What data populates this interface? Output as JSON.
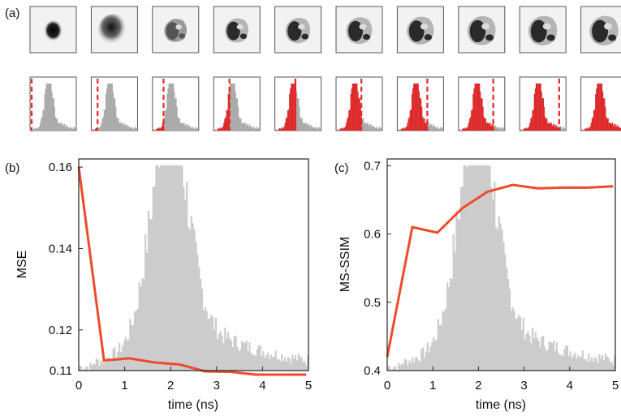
{
  "panels": {
    "a": "(a)",
    "b": "(b)",
    "c": "(c)"
  },
  "colors": {
    "histogram": "#cccccc",
    "curve": "#ee4b2b",
    "marker": "#ee2222",
    "fill": "#dd2b2b"
  },
  "strip": {
    "frames": 10,
    "marker_times_ns": [
      0.0,
      0.55,
      1.1,
      1.65,
      2.2,
      2.75,
      3.3,
      3.85,
      4.4,
      4.95
    ]
  },
  "chart_data": [
    {
      "type": "line",
      "panel": "(b)",
      "xlabel": "time (ns)",
      "ylabel": "MSE",
      "xlim": [
        0,
        5
      ],
      "ylim": [
        0.11,
        0.162
      ],
      "xticks": [
        "0",
        "1",
        "2",
        "3",
        "4",
        "5"
      ],
      "yticks": [
        "0.11",
        "0.12",
        "0.14",
        "0.16"
      ],
      "ytick_values": [
        0.11,
        0.12,
        0.14,
        0.16
      ],
      "series": [
        {
          "x": [
            0,
            0.55,
            1.1,
            1.65,
            2.2,
            2.75,
            3.3,
            3.85,
            4.4,
            4.95
          ],
          "y": [
            0.16,
            0.1125,
            0.113,
            0.112,
            0.1115,
            0.1098,
            0.1097,
            0.109,
            0.109,
            0.109
          ]
        }
      ]
    },
    {
      "type": "line",
      "panel": "(c)",
      "xlabel": "time (ns)",
      "ylabel": "MS-SSIM",
      "xlim": [
        0,
        5
      ],
      "ylim": [
        0.4,
        0.71
      ],
      "xticks": [
        "0",
        "1",
        "2",
        "3",
        "4",
        "5"
      ],
      "yticks": [
        "0.4",
        "0.5",
        "0.6",
        "0.7"
      ],
      "ytick_values": [
        0.4,
        0.5,
        0.6,
        0.7
      ],
      "series": [
        {
          "x": [
            0,
            0.55,
            1.1,
            1.65,
            2.2,
            2.75,
            3.3,
            3.85,
            4.4,
            4.95
          ],
          "y": [
            0.42,
            0.61,
            0.602,
            0.638,
            0.662,
            0.672,
            0.667,
            0.668,
            0.668,
            0.67
          ]
        }
      ]
    }
  ]
}
